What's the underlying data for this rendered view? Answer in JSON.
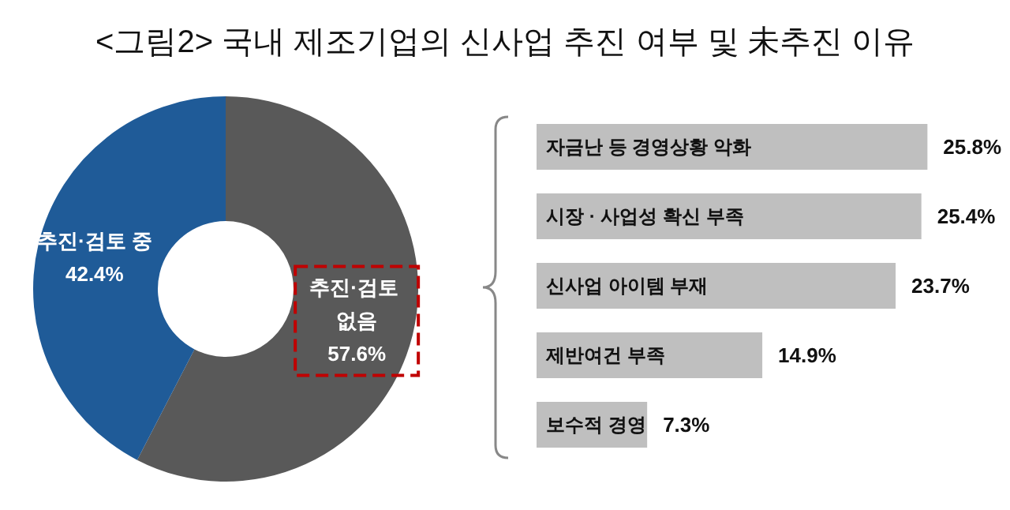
{
  "chart_data": [
    {
      "type": "donut",
      "title": "<그림2> 국내 제조기업의 신사업 추진 여부 및 未추진 이유",
      "categories": [
        "추진·검토 없음",
        "추진·검토 중"
      ],
      "values": [
        57.6,
        42.4
      ],
      "value_labels": [
        "57.6%",
        "42.4%"
      ],
      "colors": [
        "#595959",
        "#1f5b98"
      ],
      "legend": false
    },
    {
      "type": "bar",
      "orientation": "horizontal",
      "categories": [
        "자금난 등 경영상황 악화",
        "시장 · 사업성 확신 부족",
        "신사업 아이템 부재",
        "제반여건 부족",
        "보수적 경영"
      ],
      "values": [
        25.8,
        25.4,
        23.7,
        14.9,
        7.3
      ],
      "value_labels": [
        "25.8%",
        "25.4%",
        "23.7%",
        "14.9%",
        "7.3%"
      ],
      "color": "#bfbfbf",
      "tick_labels": "y",
      "legend": false
    }
  ]
}
